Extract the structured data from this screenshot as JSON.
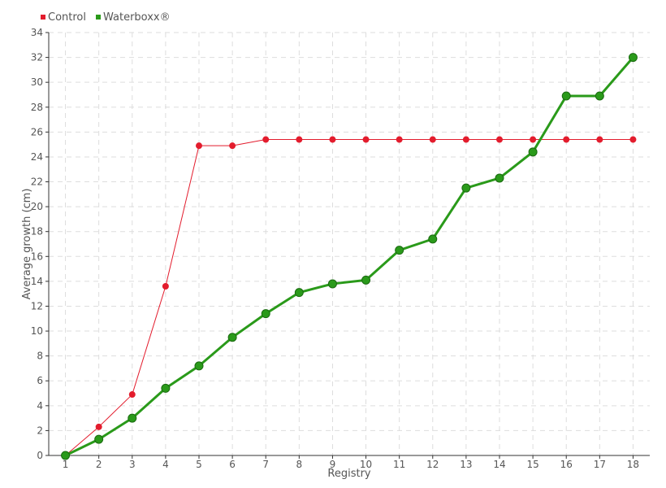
{
  "chart_data": {
    "type": "line",
    "title": "",
    "xlabel": "Registry",
    "ylabel": "Average growth (cm)",
    "x": [
      1,
      2,
      3,
      4,
      5,
      6,
      7,
      8,
      9,
      10,
      11,
      12,
      13,
      14,
      15,
      16,
      17,
      18
    ],
    "xlim": [
      0.5,
      18.5
    ],
    "ylim": [
      0,
      34
    ],
    "yticks": [
      0,
      2,
      4,
      6,
      8,
      10,
      12,
      14,
      16,
      18,
      20,
      22,
      24,
      26,
      28,
      30,
      32,
      34
    ],
    "grid": true,
    "legend_position": "top-left",
    "series": [
      {
        "name": "Control",
        "color": "#e31c2d",
        "values": [
          0,
          2.3,
          4.9,
          13.6,
          24.9,
          24.9,
          25.4,
          25.4,
          25.4,
          25.4,
          25.4,
          25.4,
          25.4,
          25.4,
          25.4,
          25.4,
          25.4,
          25.4
        ]
      },
      {
        "name": "Waterboxx®",
        "color": "#2a9a1a",
        "values": [
          0,
          1.3,
          3.0,
          5.4,
          7.2,
          9.5,
          11.4,
          13.1,
          13.8,
          14.1,
          16.5,
          17.4,
          21.5,
          22.3,
          24.4,
          28.9,
          28.9,
          32.0
        ]
      }
    ]
  }
}
